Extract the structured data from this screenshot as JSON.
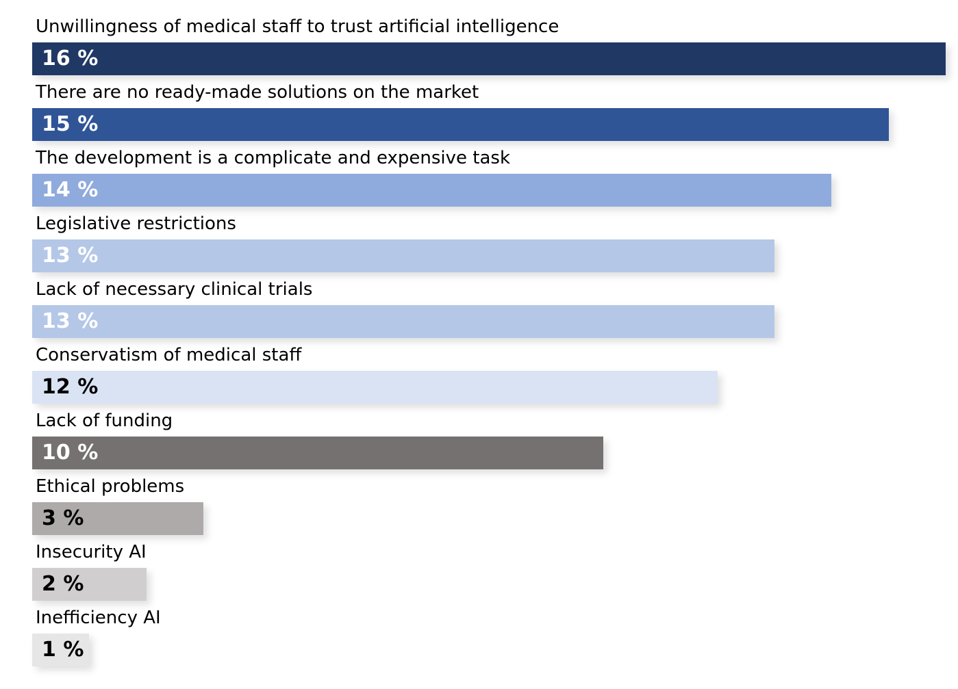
{
  "chart_data": {
    "type": "bar",
    "orientation": "horizontal",
    "title": "",
    "xlabel": "",
    "ylabel": "",
    "xlim": [
      0,
      16
    ],
    "grid": false,
    "legend": "none",
    "categories": [
      "Unwillingness of medical staff to trust artificial intelligence",
      "There are no ready-made solutions on the market",
      "The development is a complicate and expensive task",
      "Legislative restrictions",
      "Lack of necessary clinical trials",
      "Conservatism of medical staff",
      "Lack of funding",
      "Ethical problems",
      "Insecurity AI",
      "Inefficiency AI"
    ],
    "values": [
      16,
      15,
      14,
      13,
      13,
      12,
      10,
      3,
      2,
      1
    ],
    "value_labels": [
      "16 %",
      "15 %",
      "14 %",
      "13 %",
      "13 %",
      "12 %",
      "10 %",
      "3 %",
      "2 %",
      "1 %"
    ],
    "bar_colors": [
      "#203864",
      "#2f5597",
      "#8faadc",
      "#b4c7e7",
      "#b4c7e7",
      "#dae3f3",
      "#767171",
      "#aeaaaa",
      "#d0cece",
      "#e7e6e6"
    ],
    "label_colors": [
      "#ffffff",
      "#ffffff",
      "#ffffff",
      "#ffffff",
      "#ffffff",
      "#000000",
      "#ffffff",
      "#000000",
      "#000000",
      "#000000"
    ]
  }
}
